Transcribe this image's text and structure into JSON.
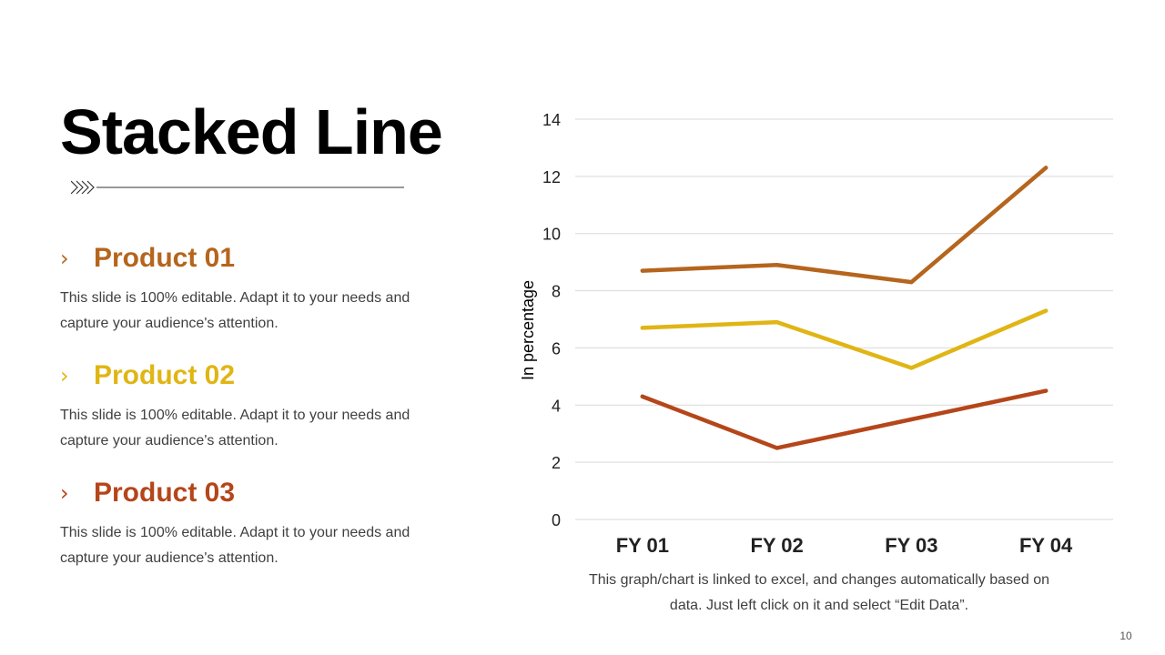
{
  "slide": {
    "title": "Stacked Line",
    "page_number": "10",
    "chart_note": "This graph/chart is linked to excel, and changes automatically based on data. Just left click on it and select “Edit Data”."
  },
  "products": [
    {
      "bullet": "›",
      "name": "Product 01",
      "color": "#b5651d",
      "description": "This slide is 100% editable. Adapt it to your needs and capture your audience's attention."
    },
    {
      "bullet": "›",
      "name": "Product 02",
      "color": "#e0b514",
      "description": "This slide is 100% editable. Adapt it to your needs and capture your audience's attention."
    },
    {
      "bullet": "›",
      "name": "Product 03",
      "color": "#b5461a",
      "description": "This slide is 100% editable. Adapt it to your needs and capture your audience's attention."
    }
  ],
  "chart_data": {
    "type": "line",
    "categories": [
      "FY 01",
      "FY 02",
      "FY 03",
      "FY 04"
    ],
    "series": [
      {
        "values": [
          8.7,
          8.9,
          8.3,
          12.3
        ],
        "color": "#b5651d"
      },
      {
        "values": [
          6.7,
          6.9,
          5.3,
          7.3
        ],
        "color": "#e0b514"
      },
      {
        "values": [
          4.3,
          2.5,
          3.5,
          4.5
        ],
        "color": "#b5461a"
      }
    ],
    "ylabel": "In percentage",
    "ylim": [
      0,
      14
    ],
    "yticks": [
      0,
      2,
      4,
      6,
      8,
      10,
      12,
      14
    ],
    "grid": true
  }
}
